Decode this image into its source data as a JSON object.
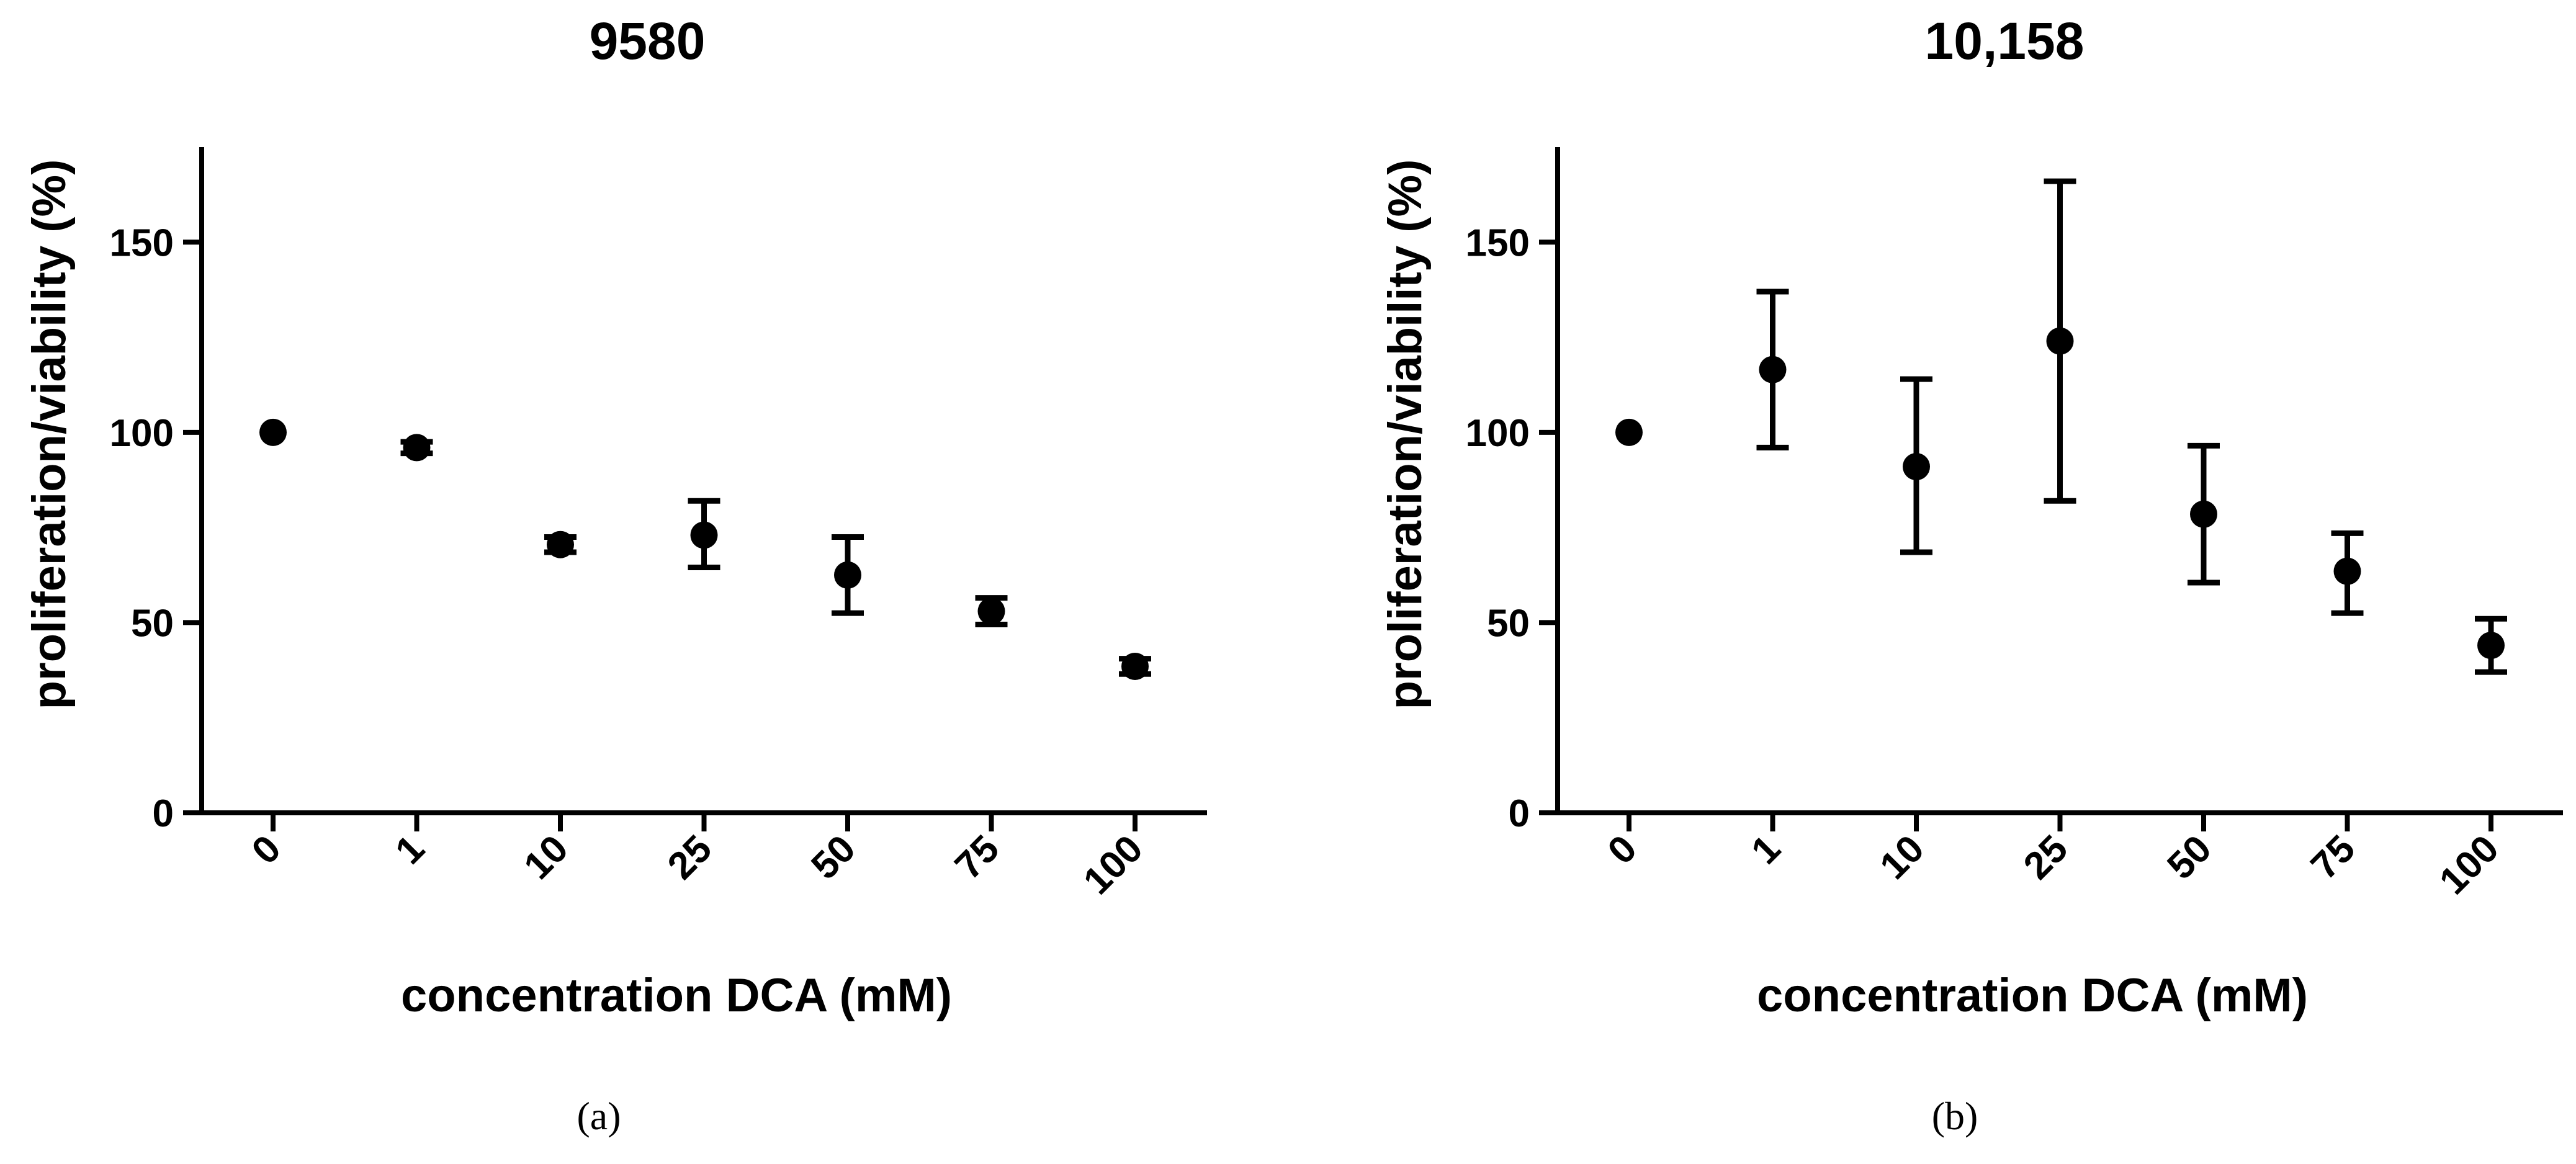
{
  "chart_data": [
    {
      "type": "scatter",
      "title": "9580",
      "caption": "(a)",
      "xlabel": "concentration DCA (mM)",
      "ylabel": "proliferation/viability (%)",
      "categories": [
        "0",
        "1",
        "10",
        "25",
        "50",
        "75",
        "100"
      ],
      "values": [
        100,
        96,
        70.5,
        73,
        62.5,
        53,
        38.5
      ],
      "error_low": [
        100,
        94.5,
        68.5,
        64.5,
        52.5,
        49.5,
        36.5
      ],
      "error_high": [
        100,
        97.5,
        72.5,
        82,
        72.5,
        56.5,
        40.5
      ],
      "ylim": [
        0,
        175
      ],
      "yticks": [
        0,
        50,
        100,
        150
      ],
      "grid": false
    },
    {
      "type": "scatter",
      "title": "10,158",
      "caption": "(b)",
      "xlabel": "concentration DCA (mM)",
      "ylabel": "proliferation/viability (%)",
      "categories": [
        "0",
        "1",
        "10",
        "25",
        "50",
        "75",
        "100"
      ],
      "values": [
        100,
        116.5,
        91,
        124,
        78.5,
        63.5,
        44
      ],
      "error_low": [
        100,
        96,
        68.5,
        82,
        60.5,
        52.5,
        37
      ],
      "error_high": [
        100,
        137,
        114,
        166,
        96.5,
        73.5,
        51
      ],
      "ylim": [
        0,
        175
      ],
      "yticks": [
        0,
        50,
        100,
        150
      ],
      "grid": false
    }
  ]
}
